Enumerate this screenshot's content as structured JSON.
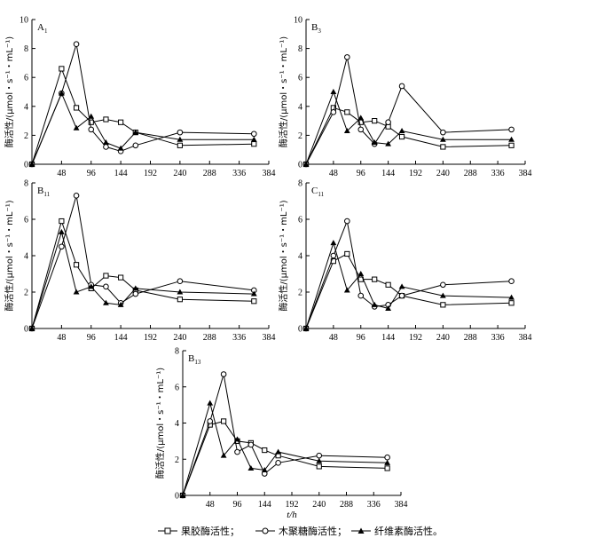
{
  "figure": {
    "xlabel": "t/h",
    "ylabel": "酶活性/(μmol・s⁻¹・mL⁻¹)",
    "legend": [
      {
        "name": "果胶酶活性；",
        "marker": "square"
      },
      {
        "name": "木聚糖酶活性；",
        "marker": "circle"
      },
      {
        "name": "纤维素酶活性。",
        "marker": "triangle"
      }
    ]
  },
  "chart_data": [
    {
      "type": "line",
      "panel": "A",
      "subscript": "1",
      "x_ticks": [
        "48",
        "96",
        "144",
        "192",
        "240",
        "288",
        "336",
        "384"
      ],
      "y_ticks": [
        "0",
        "2",
        "4",
        "6",
        "8",
        "10"
      ],
      "xlim": [
        0,
        384
      ],
      "ylim": [
        0,
        10
      ],
      "x": [
        0,
        48,
        72,
        96,
        120,
        144,
        168,
        240,
        360
      ],
      "series": [
        {
          "name": "果胶酶活性",
          "marker": "square",
          "values": [
            0,
            6.6,
            3.9,
            2.9,
            3.1,
            2.9,
            2.2,
            1.3,
            1.4
          ]
        },
        {
          "name": "木聚糖酶活性",
          "marker": "circle",
          "values": [
            0,
            4.9,
            8.3,
            2.4,
            1.2,
            0.9,
            1.3,
            2.2,
            2.1
          ]
        },
        {
          "name": "纤维素酶活性",
          "marker": "triangle",
          "values": [
            0,
            4.9,
            2.5,
            3.3,
            1.5,
            1.1,
            2.2,
            1.7,
            1.7
          ]
        }
      ]
    },
    {
      "type": "line",
      "panel": "B",
      "subscript": "3",
      "x_ticks": [
        "48",
        "96",
        "144",
        "192",
        "240",
        "288",
        "336",
        "384"
      ],
      "y_ticks": [
        "0",
        "2",
        "4",
        "6",
        "8",
        "10"
      ],
      "xlim": [
        0,
        384
      ],
      "ylim": [
        0,
        10
      ],
      "x": [
        0,
        48,
        72,
        96,
        120,
        144,
        168,
        240,
        360
      ],
      "series": [
        {
          "name": "果胶酶活性",
          "marker": "square",
          "values": [
            0,
            3.9,
            3.6,
            2.9,
            3.0,
            2.6,
            1.9,
            1.2,
            1.3
          ]
        },
        {
          "name": "木聚糖酶活性",
          "marker": "circle",
          "values": [
            0,
            3.6,
            7.4,
            2.4,
            1.4,
            2.9,
            5.4,
            2.2,
            2.4
          ]
        },
        {
          "name": "纤维素酶活性",
          "marker": "triangle",
          "values": [
            0,
            5.0,
            2.3,
            3.2,
            1.5,
            1.4,
            2.3,
            1.7,
            1.7
          ]
        }
      ]
    },
    {
      "type": "line",
      "panel": "B",
      "subscript": "11",
      "x_ticks": [
        "48",
        "96",
        "144",
        "192",
        "240",
        "288",
        "336",
        "384"
      ],
      "y_ticks": [
        "0",
        "2",
        "4",
        "6",
        "8"
      ],
      "xlim": [
        0,
        384
      ],
      "ylim": [
        0,
        8
      ],
      "x": [
        0,
        48,
        72,
        96,
        120,
        144,
        168,
        240,
        360
      ],
      "series": [
        {
          "name": "果胶酶活性",
          "marker": "square",
          "values": [
            0,
            5.9,
            3.5,
            2.2,
            2.9,
            2.8,
            2.1,
            1.6,
            1.5
          ]
        },
        {
          "name": "木聚糖酶活性",
          "marker": "circle",
          "values": [
            0,
            4.5,
            7.3,
            2.4,
            2.3,
            1.4,
            1.9,
            2.6,
            2.1
          ]
        },
        {
          "name": "纤维素酶活性",
          "marker": "triangle",
          "values": [
            0,
            5.3,
            2.0,
            2.3,
            1.4,
            1.3,
            2.2,
            2.0,
            1.9
          ]
        }
      ]
    },
    {
      "type": "line",
      "panel": "C",
      "subscript": "11",
      "x_ticks": [
        "48",
        "96",
        "144",
        "192",
        "240",
        "288",
        "336",
        "384"
      ],
      "y_ticks": [
        "0",
        "2",
        "4",
        "6",
        "8"
      ],
      "xlim": [
        0,
        384
      ],
      "ylim": [
        0,
        8
      ],
      "x": [
        0,
        48,
        72,
        96,
        120,
        144,
        168,
        240,
        360
      ],
      "series": [
        {
          "name": "果胶酶活性",
          "marker": "square",
          "values": [
            0,
            3.7,
            4.1,
            2.7,
            2.7,
            2.4,
            1.8,
            1.3,
            1.4
          ]
        },
        {
          "name": "木聚糖酶活性",
          "marker": "circle",
          "values": [
            0,
            4.0,
            5.9,
            1.8,
            1.2,
            1.3,
            1.8,
            2.4,
            2.6
          ]
        },
        {
          "name": "纤维素酶活性",
          "marker": "triangle",
          "values": [
            0,
            4.7,
            2.1,
            3.0,
            1.3,
            1.1,
            2.3,
            1.8,
            1.7
          ]
        }
      ]
    },
    {
      "type": "line",
      "panel": "B",
      "subscript": "13",
      "x_ticks": [
        "48",
        "96",
        "144",
        "192",
        "240",
        "288",
        "336",
        "384"
      ],
      "y_ticks": [
        "0",
        "2",
        "4",
        "6",
        "8"
      ],
      "xlim": [
        0,
        384
      ],
      "ylim": [
        0,
        8
      ],
      "x": [
        0,
        48,
        72,
        96,
        120,
        144,
        168,
        240,
        360
      ],
      "series": [
        {
          "name": "果胶酶活性",
          "marker": "square",
          "values": [
            0,
            3.9,
            4.1,
            3.0,
            2.9,
            2.5,
            2.2,
            1.6,
            1.5
          ]
        },
        {
          "name": "木聚糖酶活性",
          "marker": "circle",
          "values": [
            0,
            4.1,
            6.7,
            2.4,
            2.8,
            1.2,
            1.8,
            2.2,
            2.1
          ]
        },
        {
          "name": "纤维素酶活性",
          "marker": "triangle",
          "values": [
            0,
            5.1,
            2.2,
            3.1,
            1.5,
            1.4,
            2.4,
            1.9,
            1.8
          ]
        }
      ]
    }
  ]
}
